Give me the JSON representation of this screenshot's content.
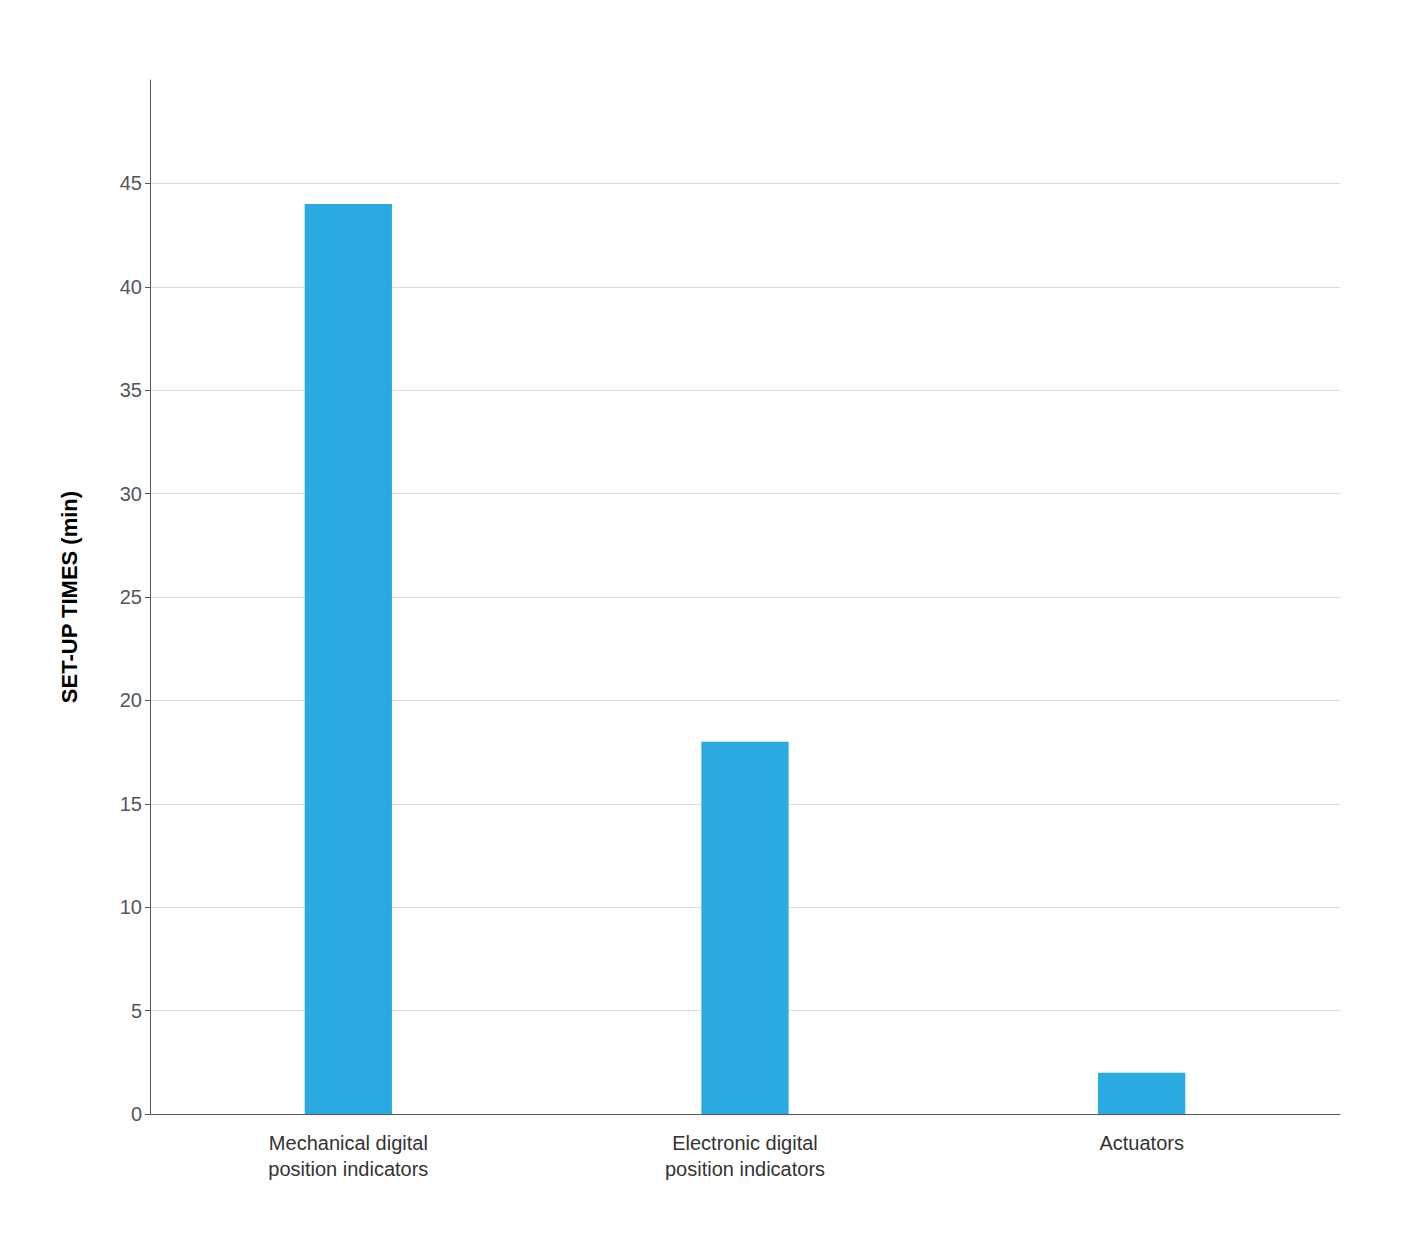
{
  "chart_data": {
    "type": "bar",
    "categories": [
      "Mechanical digital\nposition indicators",
      "Electronic digital\nposition indicators",
      "Actuators"
    ],
    "values": [
      44,
      18,
      2
    ],
    "color": "#29ABE2",
    "ylabel": "SET-UP TIMES (min)",
    "ylim": [
      0,
      50
    ],
    "yticks": [
      0,
      5,
      10,
      15,
      20,
      25,
      30,
      35,
      40,
      45
    ],
    "grid": true
  }
}
